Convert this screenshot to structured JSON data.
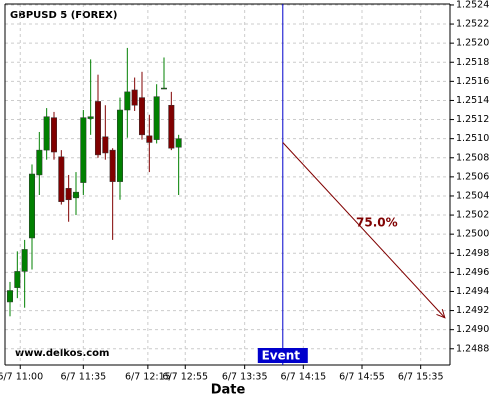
{
  "chart_data": {
    "type": "candlestick",
    "title": "GBPUSD 5 (FOREX)",
    "x_label": "Date",
    "watermark": "www.delkos.com",
    "x": [
      0,
      1,
      2,
      3,
      4,
      5,
      6,
      7,
      8,
      9,
      10,
      11,
      12,
      13,
      14,
      15,
      16,
      17,
      18,
      19,
      20,
      21,
      22,
      23
    ],
    "open": [
      1.24929,
      1.24944,
      1.24961,
      1.24996,
      1.25062,
      1.25088,
      1.25122,
      1.25081,
      1.25048,
      1.25038,
      1.25054,
      1.25121,
      1.25139,
      1.25102,
      1.25088,
      1.25055,
      1.2513,
      1.25151,
      1.25143,
      1.25103,
      1.25099,
      1.25152,
      1.25135,
      1.25091
    ],
    "high": [
      1.2495,
      1.24982,
      1.24994,
      1.25073,
      1.25107,
      1.25132,
      1.25128,
      1.25088,
      1.25062,
      1.25065,
      1.2513,
      1.25183,
      1.25167,
      1.25135,
      1.2509,
      1.25143,
      1.25195,
      1.25164,
      1.2517,
      1.25125,
      1.25157,
      1.25185,
      1.25149,
      1.25104
    ],
    "low": [
      1.24914,
      1.24933,
      1.24923,
      1.24963,
      1.25041,
      1.25078,
      1.25078,
      1.25031,
      1.25013,
      1.2502,
      1.25041,
      1.25104,
      1.2508,
      1.25078,
      1.24994,
      1.25036,
      1.25101,
      1.25129,
      1.25099,
      1.25065,
      1.25095,
      1.25152,
      1.25088,
      1.25041
    ],
    "close": [
      1.24941,
      1.24961,
      1.24984,
      1.25063,
      1.25088,
      1.25123,
      1.25086,
      1.25034,
      1.25036,
      1.25044,
      1.25122,
      1.25123,
      1.25083,
      1.25085,
      1.25055,
      1.2513,
      1.25149,
      1.25135,
      1.25104,
      1.25096,
      1.25144,
      1.25153,
      1.2509,
      1.251
    ],
    "up_color": "#008000",
    "down_color": "#800000",
    "xlim": [
      -0.68,
      60.0
    ],
    "xticks": [
      {
        "value": 1.4,
        "label": "6/7 11:00"
      },
      {
        "value": 10,
        "label": "6/7 11:35"
      },
      {
        "value": 18.8,
        "label": "6/7 12:15"
      },
      {
        "value": 23.9,
        "label": "6/7 12:55"
      },
      {
        "value": 32,
        "label": "6/7 13:35"
      },
      {
        "value": 40,
        "label": "6/7 14:15"
      },
      {
        "value": 48,
        "label": "6/7 14:55"
      },
      {
        "value": 56,
        "label": "6/7 15:35"
      }
    ],
    "ylim": [
      1.24863,
      1.25241
    ],
    "yticks": [
      1.2488,
      {
        "value": 1.249,
        "label": "1.2490"
      },
      1.2492,
      1.2494,
      1.2496,
      1.2498,
      {
        "value": 1.25,
        "label": "1.2500"
      },
      1.2502,
      1.2504,
      1.2506,
      1.2508,
      {
        "value": 1.251,
        "label": "1.2510"
      },
      1.2512,
      1.2514,
      1.2516,
      1.2518,
      {
        "value": 1.252,
        "label": "1.2520"
      },
      1.2522,
      1.2524
    ],
    "grid": true,
    "event": {
      "x": 37.2,
      "label": "Event",
      "color": "#0000cc"
    },
    "arrow": {
      "x": [
        37.2,
        59.3
      ],
      "y": [
        1.25096,
        1.249125
      ],
      "label": "75.0%",
      "color": "#800000"
    }
  }
}
